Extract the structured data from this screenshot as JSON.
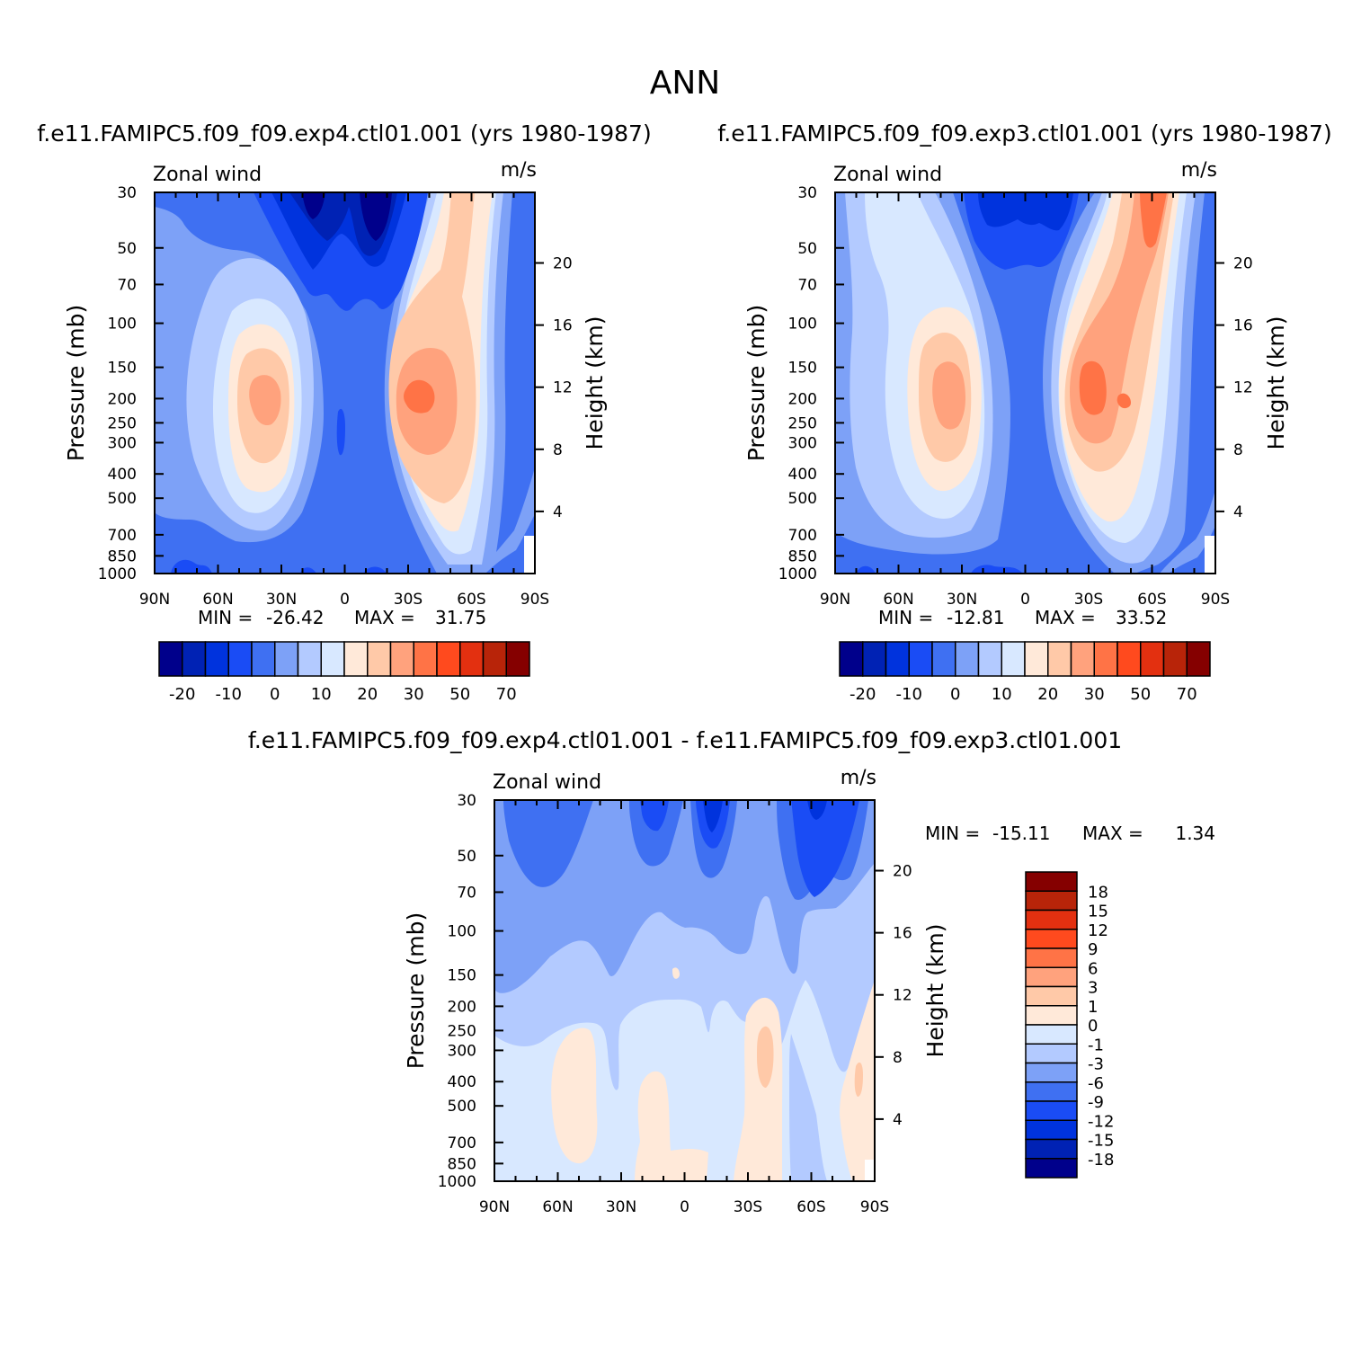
{
  "page": {
    "title": "ANN"
  },
  "colors": {
    "main_levels": [
      "#00008b",
      "#0022b4",
      "#0033dd",
      "#1a4cf5",
      "#3f70f2",
      "#7da1f7",
      "#b3caff",
      "#d8e8ff",
      "#ffe9d9",
      "#ffc9a8",
      "#ffa27d",
      "#ff7346",
      "#ff4a1e",
      "#e33010",
      "#b82409",
      "#850000"
    ],
    "diff_levels": [
      "#00008b",
      "#0022b4",
      "#0033dd",
      "#1a4cf5",
      "#3f70f2",
      "#7da1f7",
      "#b3caff",
      "#d8e8ff",
      "#ffe9d9",
      "#ffc9a8",
      "#ffa27d",
      "#ff7346",
      "#ff4a1e",
      "#e33010",
      "#b82409",
      "#850000"
    ]
  },
  "chart_data": [
    {
      "type": "heatmap",
      "id": "exp4",
      "title": "f.e11.FAMIPC5.f09_f09.exp4.ctl01.001 (yrs 1980-1987)",
      "left_label": "Zonal wind",
      "right_label": "m/s",
      "ylabel": "Pressure (mb)",
      "ylabel_right": "Height (km)",
      "x_ticks": [
        "90N",
        "60N",
        "30N",
        "0",
        "30S",
        "60S",
        "90S"
      ],
      "y_ticks": [
        "30",
        "50",
        "70",
        "100",
        "150",
        "200",
        "250",
        "300",
        "400",
        "500",
        "700",
        "850",
        "1000"
      ],
      "y_ticks_right": [
        "20",
        "16",
        "12",
        "8",
        "4"
      ],
      "stats": {
        "min_label": "MIN =",
        "min": "-26.42",
        "max_label": "MAX =",
        "max": "31.75"
      },
      "colorbar": {
        "orientation": "horizontal",
        "labels": [
          "-20",
          "-10",
          "0",
          "10",
          "20",
          "30",
          "50",
          "70"
        ]
      }
    },
    {
      "type": "heatmap",
      "id": "exp3",
      "title": "f.e11.FAMIPC5.f09_f09.exp3.ctl01.001 (yrs 1980-1987)",
      "left_label": "Zonal wind",
      "right_label": "m/s",
      "ylabel": "Pressure (mb)",
      "ylabel_right": "Height (km)",
      "x_ticks": [
        "90N",
        "60N",
        "30N",
        "0",
        "30S",
        "60S",
        "90S"
      ],
      "y_ticks": [
        "30",
        "50",
        "70",
        "100",
        "150",
        "200",
        "250",
        "300",
        "400",
        "500",
        "700",
        "850",
        "1000"
      ],
      "y_ticks_right": [
        "20",
        "16",
        "12",
        "8",
        "4"
      ],
      "stats": {
        "min_label": "MIN =",
        "min": "-12.81",
        "max_label": "MAX =",
        "max": "33.52"
      },
      "colorbar": {
        "orientation": "horizontal",
        "labels": [
          "-20",
          "-10",
          "0",
          "10",
          "20",
          "30",
          "50",
          "70"
        ]
      }
    },
    {
      "type": "heatmap",
      "id": "diff",
      "title": "f.e11.FAMIPC5.f09_f09.exp4.ctl01.001 - f.e11.FAMIPC5.f09_f09.exp3.ctl01.001",
      "left_label": "Zonal wind",
      "right_label": "m/s",
      "ylabel": "Pressure (mb)",
      "ylabel_right": "Height (km)",
      "x_ticks": [
        "90N",
        "60N",
        "30N",
        "0",
        "30S",
        "60S",
        "90S"
      ],
      "y_ticks": [
        "30",
        "50",
        "70",
        "100",
        "150",
        "200",
        "250",
        "300",
        "400",
        "500",
        "700",
        "850",
        "1000"
      ],
      "y_ticks_right": [
        "20",
        "16",
        "12",
        "8",
        "4"
      ],
      "stats": {
        "min_label": "MIN =",
        "min": "-15.11",
        "max_label": "MAX =",
        "max": "1.34"
      },
      "colorbar": {
        "orientation": "vertical",
        "labels": [
          "18",
          "15",
          "12",
          "9",
          "6",
          "3",
          "1",
          "0",
          "-1",
          "-3",
          "-6",
          "-9",
          "-12",
          "-15",
          "-18"
        ]
      }
    }
  ]
}
